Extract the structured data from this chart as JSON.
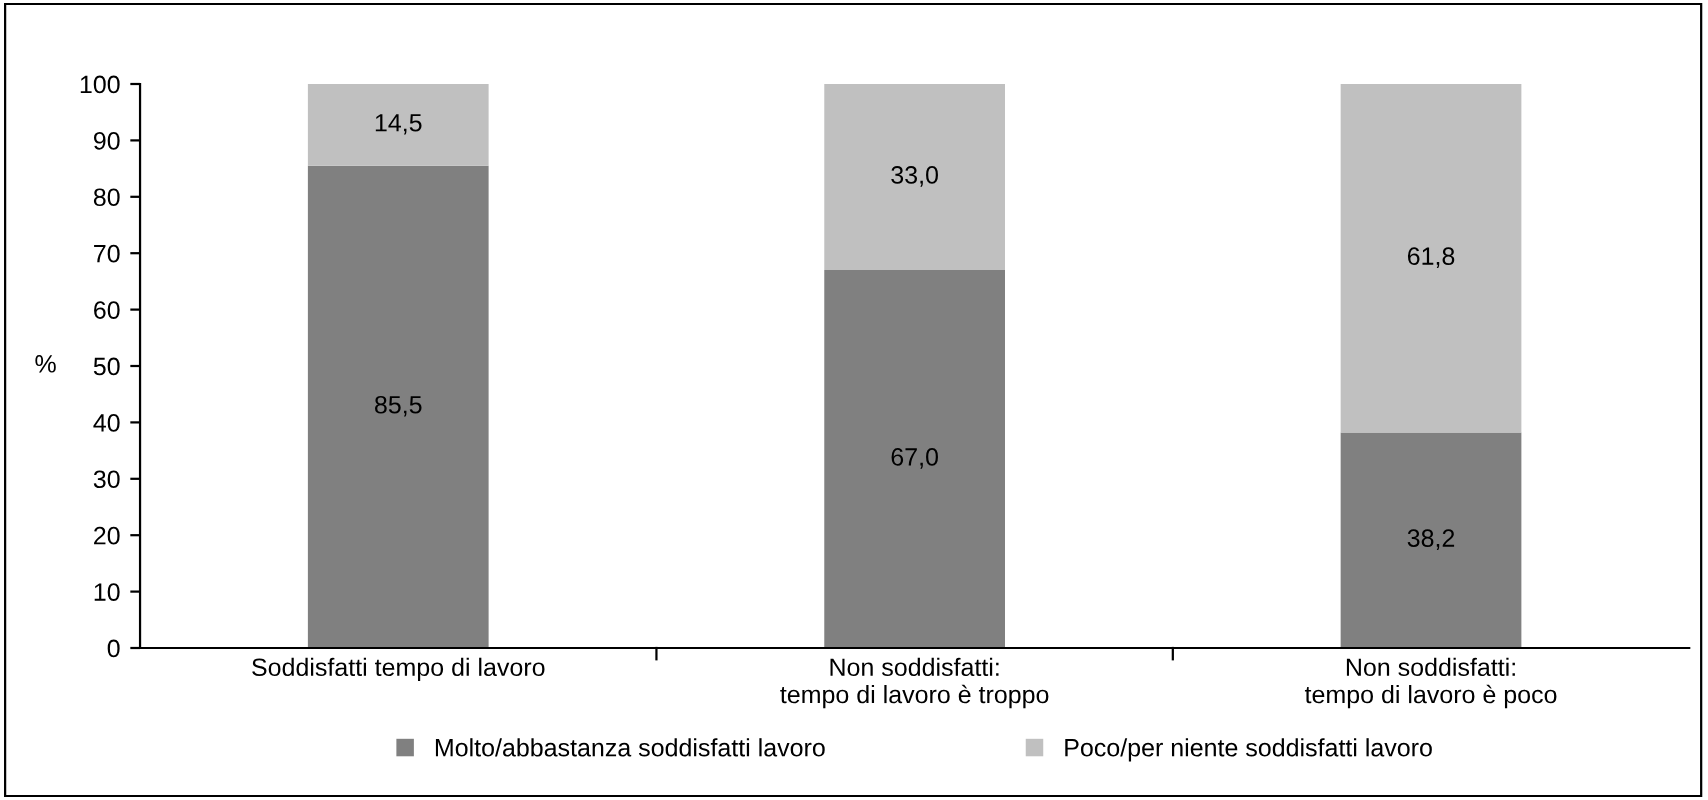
{
  "chart_data": {
    "type": "bar",
    "stacked": true,
    "ylabel": "%",
    "categories": [
      "Soddisfatti tempo di lavoro",
      "Non soddisfatti:\ntempo di lavoro è troppo",
      "Non soddisfatti:\ntempo di lavoro è poco"
    ],
    "series": [
      {
        "name": "Molto/abbastanza soddisfatti lavoro",
        "color": "#808080",
        "values": [
          85.5,
          67.0,
          38.2
        ],
        "value_labels": [
          "85,5",
          "67,0",
          "38,2"
        ]
      },
      {
        "name": "Poco/per niente soddisfatti lavoro",
        "color": "#c0c0c0",
        "values": [
          14.5,
          33.0,
          61.8
        ],
        "value_labels": [
          "14,5",
          "33,0",
          "61,8"
        ]
      }
    ],
    "ylim": [
      0,
      100
    ],
    "yticks": [
      0,
      10,
      20,
      30,
      40,
      50,
      60,
      70,
      80,
      90,
      100
    ],
    "grid": false,
    "legend": "bottom"
  }
}
